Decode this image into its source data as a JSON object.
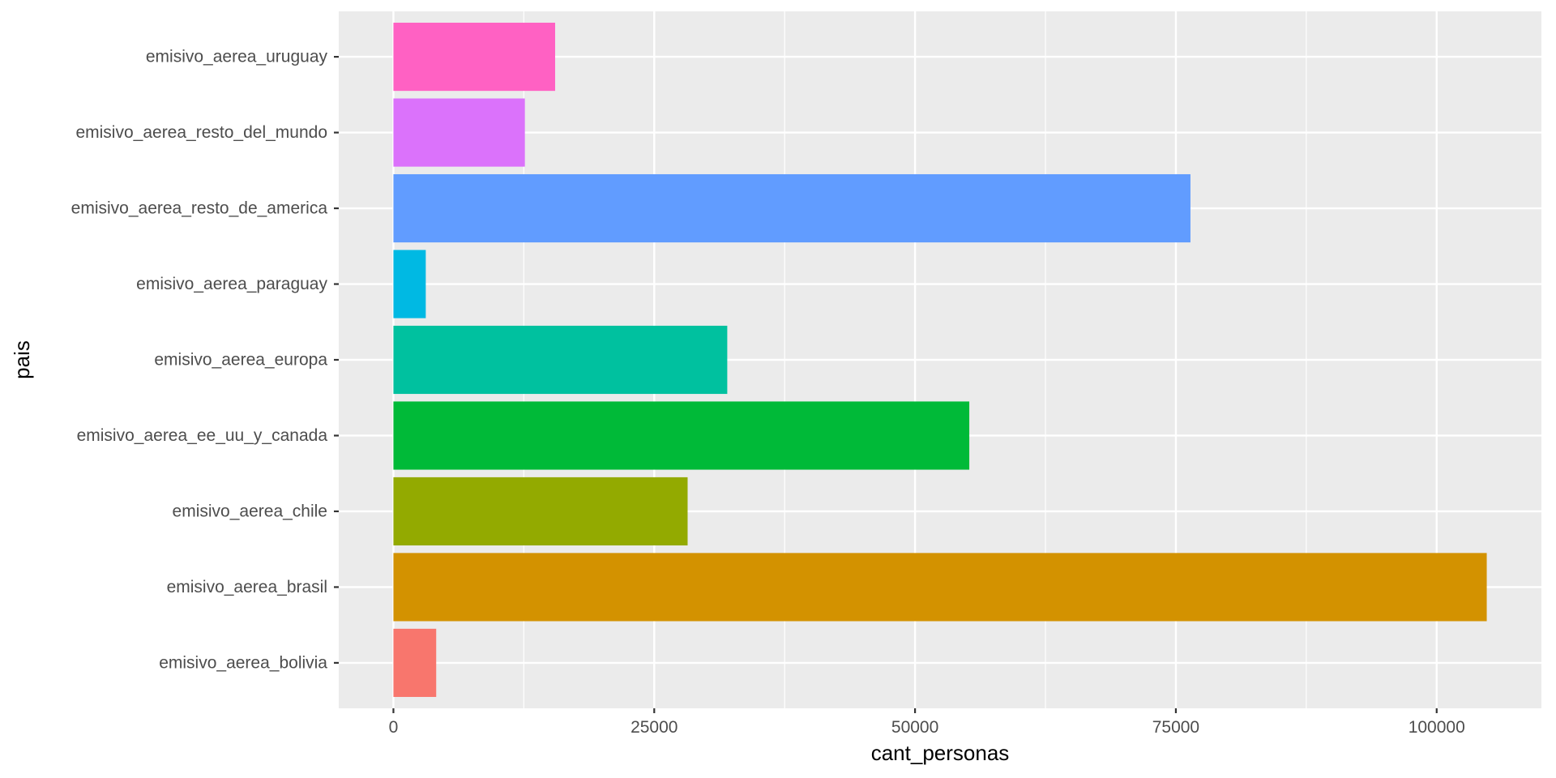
{
  "chart_data": {
    "type": "bar",
    "orientation": "horizontal",
    "title": "",
    "xlabel": "cant_personas",
    "ylabel": "pais",
    "categories": [
      "emisivo_aerea_bolivia",
      "emisivo_aerea_brasil",
      "emisivo_aerea_chile",
      "emisivo_aerea_ee_uu_y_canada",
      "emisivo_aerea_europa",
      "emisivo_aerea_paraguay",
      "emisivo_aerea_resto_de_america",
      "emisivo_aerea_resto_del_mundo",
      "emisivo_aerea_uruguay"
    ],
    "values": [
      4100,
      104800,
      28200,
      55200,
      32000,
      3100,
      76400,
      12600,
      15500
    ],
    "colors": [
      "#F8766D",
      "#D39200",
      "#93AA00",
      "#00BA38",
      "#00C19F",
      "#00B9E3",
      "#619CFF",
      "#DB72FB",
      "#FF61C3"
    ],
    "xlim": [
      -5240,
      110040
    ],
    "x_ticks": [
      0,
      25000,
      50000,
      75000,
      100000
    ],
    "x_tick_labels": [
      "0",
      "25000",
      "50000",
      "75000",
      "100000"
    ],
    "grid": true,
    "legend": "none",
    "panel_background": "#EBEBEB",
    "gridline_color": "#FFFFFF"
  }
}
